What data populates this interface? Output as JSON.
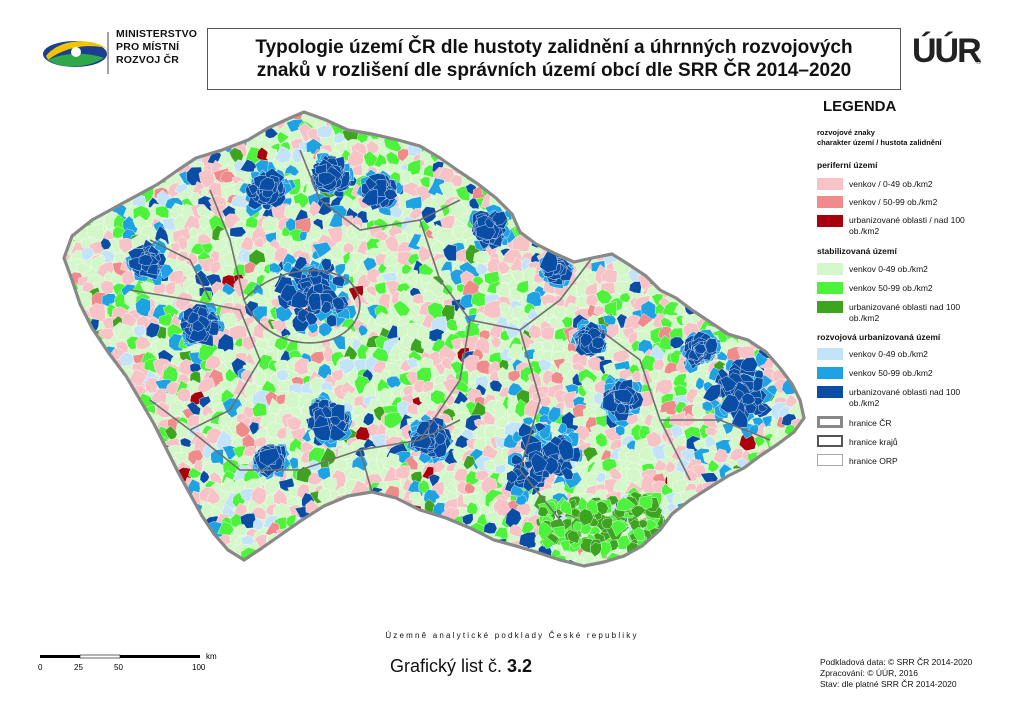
{
  "logo": {
    "lines": [
      "MINISTERSTVO",
      "PRO MÍSTNÍ",
      "ROZVOJ ČR"
    ],
    "icon": "ministry-logo-swoosh"
  },
  "title": {
    "line1": "Typologie území ČR dle hustoty zalidnění a úhrnných rozvojových",
    "line2": "znaků v rozlišení dle správních území obcí dle SRR ČR 2014–2020"
  },
  "uur_logo": {
    "text": "ÚÚR",
    "mark": "®"
  },
  "legend": {
    "title": "LEGENDA",
    "sub1": "rozvojové znaky",
    "sub2": "charakter území / hustota zalidnění",
    "groups": [
      {
        "heading": "periferní území",
        "items": [
          {
            "label": "venkov / 0-49 ob./km2",
            "color": "#f7c3c6"
          },
          {
            "label": "venkov / 50-99 ob./km2",
            "color": "#f08b8c"
          },
          {
            "label": "urbanizované oblasti / nad 100 ob./km2",
            "color": "#a8000d"
          }
        ]
      },
      {
        "heading": "stabilizovaná území",
        "items": [
          {
            "label": "venkov 0-49 ob./km2",
            "color": "#d3f7c8"
          },
          {
            "label": "venkov 50-99 ob./km2",
            "color": "#4df23b"
          },
          {
            "label": "urbanizované oblasti nad 100 ob./km2",
            "color": "#3ca41e"
          }
        ]
      },
      {
        "heading": "rozvojová urbanizovaná území",
        "items": [
          {
            "label": "venkov 0-49  ob./km2",
            "color": "#c3e4f8"
          },
          {
            "label": "venkov 50-99 ob./km2",
            "color": "#1ea2e2"
          },
          {
            "label": "urbanizované oblasti nad 100 ob./km2",
            "color": "#0a4da4"
          }
        ]
      }
    ],
    "boundaries": [
      {
        "label": "hranice ČR",
        "style": "country"
      },
      {
        "label": "hranice krajů",
        "style": "region"
      },
      {
        "label": "hranice ORP",
        "style": "orp"
      }
    ]
  },
  "caption": "Územně analytické podklady České republiky",
  "scale": {
    "unit": "km",
    "ticks": [
      "0",
      "25",
      "50",
      "100"
    ]
  },
  "sheet": {
    "label": "Grafický list č.",
    "number": "3.2"
  },
  "credits": [
    "Podkladová data: © SRR ČR 2014-2020",
    "Zpracování: © ÚÚR, 2016",
    "Stav: dle platné SRR ČR 2014-2020"
  ],
  "map": {
    "subject": "Česká republika",
    "colors": {
      "border": "#888888",
      "region": "#707070"
    }
  }
}
